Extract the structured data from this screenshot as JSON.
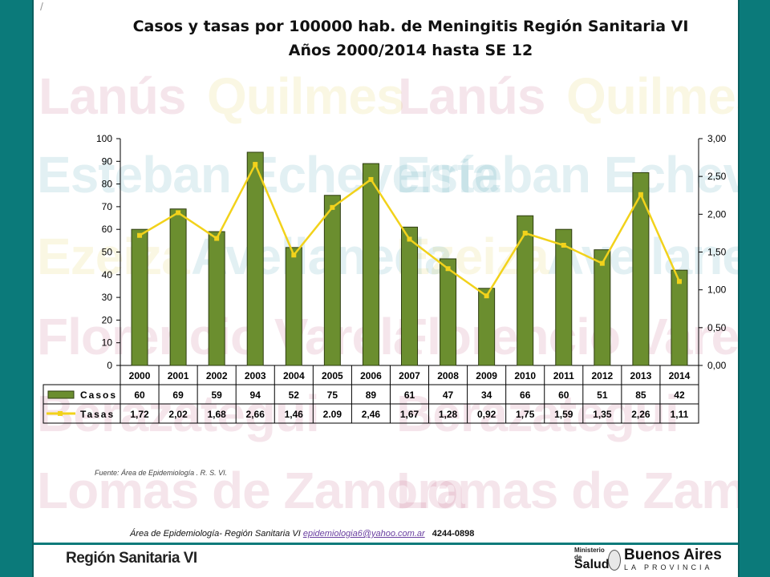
{
  "title_line1": "Casos y tasas por 100000 hab. de Meningitis Región Sanitaria VI",
  "title_line2": "Años 2000/2014 hasta SE 12",
  "slide_marker": "/",
  "watermark": {
    "w1": "Lanús",
    "w2": "Quilmes",
    "w3": "Lanús",
    "w4": "Quilmes",
    "w5": "Esteban Echeverría",
    "w6": "Esteban Echeverría",
    "w7": "Ezeiza",
    "w8": "Avellaneda",
    "w9": "Ezeiza",
    "w10": "Avellaneda",
    "w11": "Florencio Varela",
    "w12": "Florencio Varela",
    "w13": "Berazategui",
    "w14": "Berazategui",
    "w15": "Lomas de Zamora",
    "w16": "Lomas de Zamora"
  },
  "colors": {
    "bar": "#6b8e2f",
    "bar_stroke": "#2e3d10",
    "line": "#f2d21b",
    "frame": "#0b7a7a"
  },
  "chart_data": {
    "type": "bar",
    "categories": [
      "2000",
      "2001",
      "2002",
      "2003",
      "2004",
      "2005",
      "2006",
      "2007",
      "2008",
      "2009",
      "2010",
      "2011",
      "2012",
      "2013",
      "2014"
    ],
    "series": [
      {
        "name": "Casos",
        "type": "bar",
        "axis": "left",
        "values": [
          60,
          69,
          59,
          94,
          52,
          75,
          89,
          61,
          47,
          34,
          66,
          60,
          51,
          85,
          42
        ]
      },
      {
        "name": "Tasas",
        "type": "line",
        "axis": "right",
        "values": [
          1.72,
          2.02,
          1.68,
          2.66,
          1.46,
          2.09,
          2.46,
          1.67,
          1.28,
          0.92,
          1.75,
          1.59,
          1.35,
          2.26,
          1.11
        ]
      }
    ],
    "left_axis": {
      "min": 0,
      "max": 100,
      "ticks": [
        "0",
        "10",
        "20",
        "30",
        "40",
        "50",
        "60",
        "70",
        "80",
        "90",
        "100"
      ]
    },
    "right_axis": {
      "min": 0,
      "max": 3,
      "ticks": [
        "0,00",
        "0,50",
        "1,00",
        "1,50",
        "2,00",
        "2,50",
        "3,00"
      ]
    },
    "table": {
      "casos_label": "Casos",
      "tasas_label": "Tasas",
      "casos": [
        "60",
        "69",
        "59",
        "94",
        "52",
        "75",
        "89",
        "61",
        "47",
        "34",
        "66",
        "60",
        "51",
        "85",
        "42"
      ],
      "tasas": [
        "1,72",
        "2,02",
        "1,68",
        "2,66",
        "1,46",
        "2.09",
        "2,46",
        "1,67",
        "1,28",
        "0,92",
        "1,75",
        "1,59",
        "1,35",
        "2,26",
        "1,11"
      ]
    }
  },
  "source": "Fuente: Área de Epidemiología . R. S. VI.",
  "footer": {
    "text": "Área de Epidemiología- Región Sanitaria VI",
    "email": "epidemiologia6@yahoo.com.ar",
    "phone": "4244-0898"
  },
  "brand_left": "Región Sanitaria VI",
  "logo": {
    "ministry_line1": "Ministerio",
    "ministry_line2": "de",
    "salud": "Salud",
    "ba": "Buenos Aires",
    "provincia": "LA PROVINCIA"
  }
}
